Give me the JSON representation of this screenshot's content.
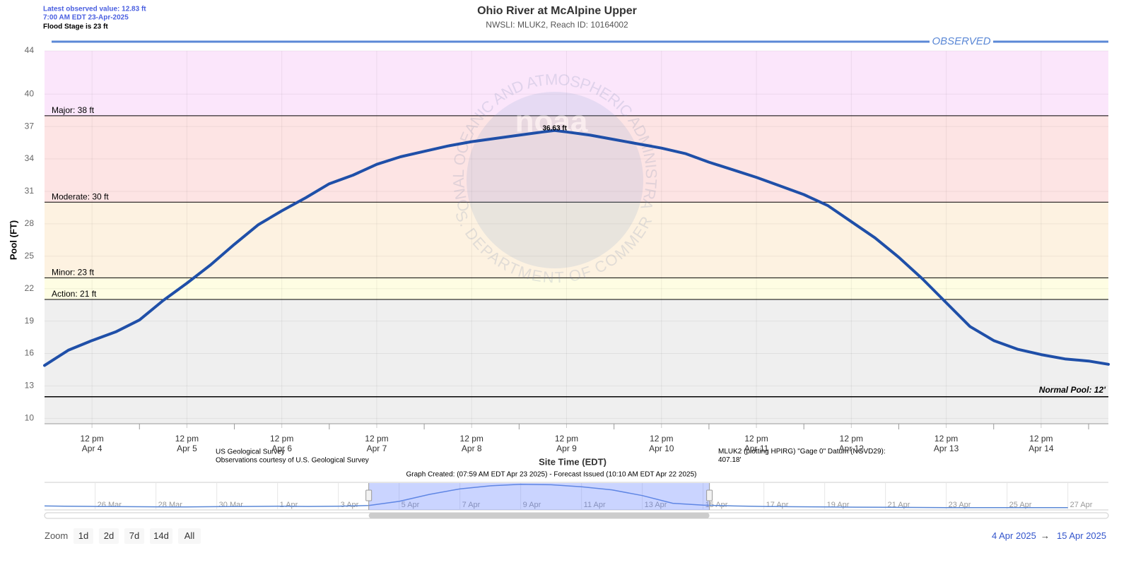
{
  "chart_data": {
    "type": "line",
    "title": "Ohio River at McAlpine Upper",
    "subtitle": "NWSLI: MLUK2, Reach ID: 10164002",
    "info_lines": [
      "Latest observed value: 12.83 ft",
      "7:00 AM EDT 23-Apr-2025",
      "Flood Stage is 23 ft"
    ],
    "y_label": "Pool (FT)",
    "x_label": "Site Time (EDT)",
    "x": [
      "2025-04-04T00:00",
      "2025-04-04T06:00",
      "2025-04-04T12:00",
      "2025-04-04T18:00",
      "2025-04-05T00:00",
      "2025-04-05T06:00",
      "2025-04-05T12:00",
      "2025-04-05T18:00",
      "2025-04-06T00:00",
      "2025-04-06T06:00",
      "2025-04-06T12:00",
      "2025-04-06T18:00",
      "2025-04-07T00:00",
      "2025-04-07T06:00",
      "2025-04-07T12:00",
      "2025-04-07T18:00",
      "2025-04-08T00:00",
      "2025-04-08T06:00",
      "2025-04-08T12:00",
      "2025-04-08T18:00",
      "2025-04-09T00:00",
      "2025-04-09T06:00",
      "2025-04-09T09:00",
      "2025-04-09T12:00",
      "2025-04-09T18:00",
      "2025-04-10T00:00",
      "2025-04-10T06:00",
      "2025-04-10T12:00",
      "2025-04-10T18:00",
      "2025-04-11T00:00",
      "2025-04-11T06:00",
      "2025-04-11T12:00",
      "2025-04-11T18:00",
      "2025-04-12T00:00",
      "2025-04-12T06:00",
      "2025-04-12T12:00",
      "2025-04-12T18:00",
      "2025-04-13T00:00",
      "2025-04-13T06:00",
      "2025-04-13T12:00",
      "2025-04-13T18:00",
      "2025-04-14T00:00",
      "2025-04-14T06:00",
      "2025-04-14T12:00",
      "2025-04-14T18:00",
      "2025-04-15T00:00",
      "2025-04-15T05:00"
    ],
    "series": [
      {
        "name": "OBSERVED",
        "color": "#1f4fa8",
        "legend_color": "#5b88d6",
        "values": [
          14.9,
          16.3,
          17.2,
          18.0,
          19.1,
          20.9,
          22.5,
          24.2,
          26.1,
          27.9,
          29.2,
          30.4,
          31.7,
          32.5,
          33.5,
          34.2,
          34.7,
          35.2,
          35.6,
          35.9,
          36.2,
          36.5,
          36.63,
          36.5,
          36.2,
          35.8,
          35.4,
          35.0,
          34.5,
          33.7,
          33.0,
          32.3,
          31.5,
          30.7,
          29.7,
          28.2,
          26.7,
          24.9,
          22.9,
          20.7,
          18.5,
          17.2,
          16.4,
          15.9,
          15.5,
          15.3,
          15.0
        ]
      }
    ],
    "peak": {
      "x": "2025-04-09T09:00",
      "value": 36.63,
      "label": "36.63 ft"
    },
    "xlim": [
      "2025-04-04T00:00",
      "2025-04-15T05:00"
    ],
    "xticks": [
      {
        "value": "2025-04-04T12:00",
        "label": "12 pm\nApr 4"
      },
      {
        "value": "2025-04-05T12:00",
        "label": "12 pm\nApr 5"
      },
      {
        "value": "2025-04-06T12:00",
        "label": "12 pm\nApr 6"
      },
      {
        "value": "2025-04-07T12:00",
        "label": "12 pm\nApr 7"
      },
      {
        "value": "2025-04-08T12:00",
        "label": "12 pm\nApr 8"
      },
      {
        "value": "2025-04-09T12:00",
        "label": "12 pm\nApr 9"
      },
      {
        "value": "2025-04-10T12:00",
        "label": "12 pm\nApr 10"
      },
      {
        "value": "2025-04-11T12:00",
        "label": "12 pm\nApr 11"
      },
      {
        "value": "2025-04-12T12:00",
        "label": "12 pm\nApr 12"
      },
      {
        "value": "2025-04-13T12:00",
        "label": "12 pm\nApr 13"
      },
      {
        "value": "2025-04-14T12:00",
        "label": "12 pm\nApr 14"
      }
    ],
    "xminorticks": [
      "2025-04-05T00:00",
      "2025-04-06T00:00",
      "2025-04-07T00:00",
      "2025-04-08T00:00",
      "2025-04-09T00:00",
      "2025-04-10T00:00",
      "2025-04-11T00:00",
      "2025-04-12T00:00",
      "2025-04-13T00:00",
      "2025-04-14T00:00",
      "2025-04-15T00:00"
    ],
    "ylim": [
      9.5,
      44
    ],
    "yticks": [
      10,
      13,
      16,
      19,
      22,
      25,
      28,
      31,
      34,
      37,
      40,
      44
    ],
    "grid": true,
    "bands": [
      {
        "from": 38,
        "to": 44,
        "color": "#fbe6fb"
      },
      {
        "from": 30,
        "to": 38,
        "color": "#fde4e4"
      },
      {
        "from": 23,
        "to": 30,
        "color": "#fdf2e1"
      },
      {
        "from": 21,
        "to": 23,
        "color": "#fefde3"
      },
      {
        "from": 9.5,
        "to": 21,
        "color": "#efefef"
      }
    ],
    "thresholds": [
      {
        "label": "Major: 38 ft",
        "value": 38
      },
      {
        "label": "Moderate: 30 ft",
        "value": 30
      },
      {
        "label": "Minor: 23 ft",
        "value": 23
      },
      {
        "label": "Action: 21 ft",
        "value": 21
      },
      {
        "label": "Normal Pool: 12'",
        "value": 12,
        "align": "right"
      }
    ],
    "watermark": {
      "top": "NATIONAL OCEANIC AND ATMOSPHERIC ADMINISTRATION",
      "bottom": "U.S. DEPARTMENT OF COMMERCE",
      "logo": "noaa"
    },
    "credits": {
      "source": "US Geological Survey",
      "courtesy": "Observations courtesy of U.S. Geological Survey",
      "datum": "MLUK2 (plotting HPIRG) \"Gage 0\" Datum (NGVD29): 407.18'",
      "created": "Graph Created: (07:59 AM EDT Apr 23 2025) - Forecast Issued (10:10 AM EDT Apr 22 2025)"
    },
    "navigator": {
      "color": "#5b88d6",
      "xlim": [
        "2025-03-24T08:00",
        "2025-04-28T08:00"
      ],
      "ylim": [
        10.5,
        37.5
      ],
      "x": [
        "2025-03-24T08:00",
        "2025-03-25T00:00",
        "2025-03-26T00:00",
        "2025-03-27T00:00",
        "2025-03-28T00:00",
        "2025-03-29T00:00",
        "2025-03-30T00:00",
        "2025-03-31T00:00",
        "2025-04-01T00:00",
        "2025-04-02T00:00",
        "2025-04-03T00:00",
        "2025-04-04T00:00",
        "2025-04-05T00:00",
        "2025-04-06T00:00",
        "2025-04-07T00:00",
        "2025-04-08T00:00",
        "2025-04-09T00:00",
        "2025-04-10T00:00",
        "2025-04-11T00:00",
        "2025-04-12T00:00",
        "2025-04-13T00:00",
        "2025-04-14T00:00",
        "2025-04-15T00:00",
        "2025-04-16T00:00",
        "2025-04-17T00:00",
        "2025-04-18T00:00",
        "2025-04-19T00:00",
        "2025-04-20T00:00",
        "2025-04-21T00:00",
        "2025-04-22T00:00",
        "2025-04-23T00:00",
        "2025-04-25T00:00",
        "2025-04-27T00:00"
      ],
      "values": [
        14.5,
        14.3,
        14.0,
        13.8,
        13.6,
        13.5,
        13.8,
        14.0,
        14.2,
        14.0,
        14.3,
        14.9,
        19.1,
        26.1,
        31.7,
        34.7,
        36.2,
        35.8,
        33.7,
        30.7,
        24.9,
        17.2,
        15.3,
        14.5,
        14.0,
        13.7,
        13.5,
        13.3,
        13.1,
        13.0,
        12.83,
        12.8,
        12.8
      ],
      "ticks": [
        {
          "value": "2025-03-26T00:00",
          "label": "26 Mar"
        },
        {
          "value": "2025-03-28T00:00",
          "label": "28 Mar"
        },
        {
          "value": "2025-03-30T00:00",
          "label": "30 Mar"
        },
        {
          "value": "2025-04-01T00:00",
          "label": "1 Apr"
        },
        {
          "value": "2025-04-03T00:00",
          "label": "3 Apr"
        },
        {
          "value": "2025-04-05T00:00",
          "label": "5 Apr"
        },
        {
          "value": "2025-04-07T00:00",
          "label": "7 Apr"
        },
        {
          "value": "2025-04-09T00:00",
          "label": "9 Apr"
        },
        {
          "value": "2025-04-11T00:00",
          "label": "11 Apr"
        },
        {
          "value": "2025-04-13T00:00",
          "label": "13 Apr"
        },
        {
          "value": "2025-04-15T00:00",
          "label": "15 Apr"
        },
        {
          "value": "2025-04-17T00:00",
          "label": "17 Apr"
        },
        {
          "value": "2025-04-19T00:00",
          "label": "19 Apr"
        },
        {
          "value": "2025-04-21T00:00",
          "label": "21 Apr"
        },
        {
          "value": "2025-04-23T00:00",
          "label": "23 Apr"
        },
        {
          "value": "2025-04-25T00:00",
          "label": "25 Apr"
        },
        {
          "value": "2025-04-27T00:00",
          "label": "27 Apr"
        }
      ]
    },
    "zoom": {
      "label": "Zoom",
      "buttons": [
        "1d",
        "2d",
        "7d",
        "14d",
        "All"
      ]
    },
    "range": {
      "from": "4 Apr 2025",
      "arrow": "→",
      "to": "15 Apr 2025"
    }
  }
}
